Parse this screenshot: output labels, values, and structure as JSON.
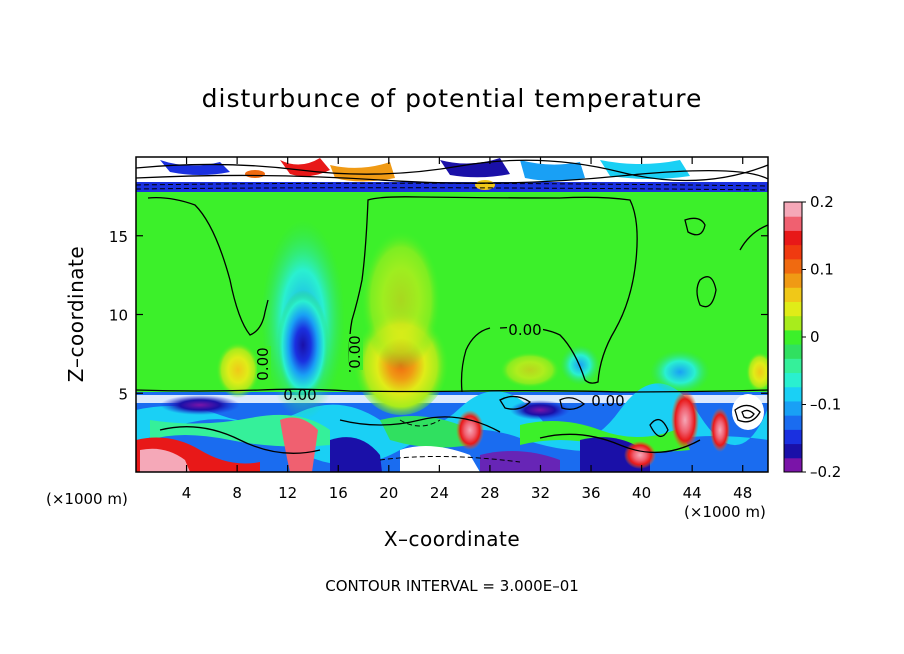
{
  "chart_data": {
    "type": "heatmap",
    "title": "disturbunce of potential temperature",
    "xlabel": "X–coordinate",
    "ylabel": "Z–coordinate",
    "x_unit_left": "(×1000 m)",
    "x_unit_right": "(×1000 m)",
    "xlim": [
      0,
      50
    ],
    "ylim": [
      0,
      20
    ],
    "x_ticks": [
      4,
      8,
      12,
      16,
      20,
      24,
      28,
      32,
      36,
      40,
      44,
      48
    ],
    "x_tick_labels": [
      "4",
      "8",
      "12",
      "16",
      "20",
      "24",
      "28",
      "32",
      "36",
      "40",
      "44",
      "48"
    ],
    "y_ticks": [
      5,
      10,
      15
    ],
    "y_tick_labels": [
      "5",
      "10",
      "15"
    ],
    "contour_labels": [
      "0.00",
      "0.00",
      "0.00",
      "0.00",
      "0.00"
    ],
    "contour_interval_text": "CONTOUR INTERVAL = 3.000E–01",
    "colorbar": {
      "min": -0.2,
      "max": 0.2,
      "tick_values": [
        0.2,
        0.1,
        0,
        -0.1,
        -0.2
      ],
      "tick_labels": [
        "0.2",
        "0.1",
        "0",
        "–0.1",
        "–0.2"
      ],
      "colors": [
        "#7a14a8",
        "#1a10a8",
        "#1a30e0",
        "#1a6cf0",
        "#19a0f5",
        "#1ad0f5",
        "#2af0d0",
        "#35f09a",
        "#30e060",
        "#3cf02a",
        "#a8ec1c",
        "#e0ec18",
        "#f0c818",
        "#f09a14",
        "#f06a10",
        "#f03a10",
        "#e81818",
        "#f06070",
        "#f5a8b8"
      ]
    },
    "grid": false,
    "legend": "colorbar-right"
  }
}
